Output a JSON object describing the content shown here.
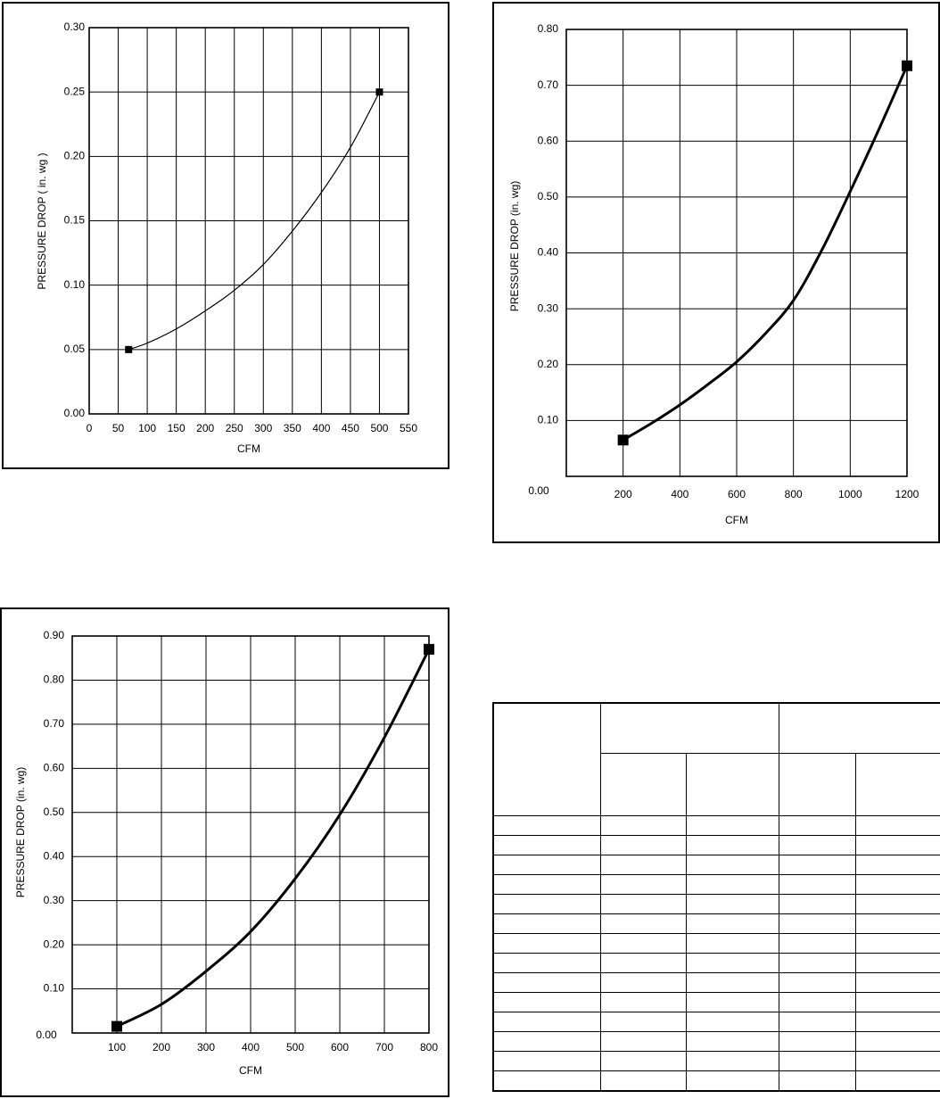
{
  "chart_data": [
    {
      "type": "line",
      "xlabel": "CFM",
      "ylabel": "PRESSURE DROP ( in. wg )",
      "xlim": [
        0,
        550
      ],
      "ylim": [
        0,
        0.3
      ],
      "xticks": [
        0,
        50,
        100,
        150,
        200,
        250,
        300,
        350,
        400,
        450,
        500,
        550
      ],
      "xtick_labels": [
        "0",
        "50",
        "100",
        "150",
        "200",
        "250",
        "300",
        "350",
        "400",
        "450",
        "500",
        "550"
      ],
      "yticks": [
        0,
        0.05,
        0.1,
        0.15,
        0.2,
        0.25,
        0.3
      ],
      "ytick_labels": [
        "0.00",
        "0.05",
        "0.10",
        "0.15",
        "0.20",
        "0.25",
        "0.30"
      ],
      "grid": true,
      "series": [
        {
          "x": [
            68,
            100,
            150,
            200,
            250,
            300,
            350,
            400,
            450,
            500
          ],
          "values": [
            0.05,
            0.055,
            0.066,
            0.08,
            0.096,
            0.116,
            0.142,
            0.172,
            0.207,
            0.25
          ]
        }
      ],
      "markers": {
        "x": [
          68,
          500
        ],
        "values": [
          0.05,
          0.25
        ]
      }
    },
    {
      "type": "line",
      "xlabel": "CFM",
      "ylabel": "PRESSURE DROP (in. wg)",
      "xlim": [
        0,
        1200
      ],
      "ylim": [
        0,
        0.8
      ],
      "xticks": [
        200,
        400,
        600,
        800,
        1000,
        1200
      ],
      "xtick_labels": [
        "200",
        "400",
        "600",
        "800",
        "1000",
        "1200"
      ],
      "yticks": [
        0.1,
        0.2,
        0.3,
        0.4,
        0.5,
        0.6,
        0.7,
        0.8
      ],
      "ytick_labels": [
        "0.10",
        "0.20",
        "0.30",
        "0.40",
        "0.50",
        "0.60",
        "0.70",
        "0.80"
      ],
      "y_zero_label": "0.00",
      "grid": true,
      "series": [
        {
          "x": [
            200,
            300,
            400,
            500,
            600,
            700,
            800,
            900,
            1000,
            1100,
            1200
          ],
          "values": [
            0.065,
            0.095,
            0.128,
            0.165,
            0.205,
            0.255,
            0.315,
            0.405,
            0.51,
            0.62,
            0.735
          ]
        }
      ],
      "markers": {
        "x": [
          200,
          1200
        ],
        "values": [
          0.065,
          0.735
        ]
      }
    },
    {
      "type": "line",
      "xlabel": "CFM",
      "ylabel": "PRESSURE DROP (in. wg)",
      "xlim": [
        0,
        800
      ],
      "ylim": [
        0,
        0.9
      ],
      "xticks": [
        100,
        200,
        300,
        400,
        500,
        600,
        700,
        800
      ],
      "xtick_labels": [
        "100",
        "200",
        "300",
        "400",
        "500",
        "600",
        "700",
        "800"
      ],
      "yticks": [
        0.1,
        0.2,
        0.3,
        0.4,
        0.5,
        0.6,
        0.7,
        0.8,
        0.9
      ],
      "ytick_labels": [
        "0.10",
        "0.20",
        "0.30",
        "0.40",
        "0.50",
        "0.60",
        "0.70",
        "0.80",
        "0.90"
      ],
      "y_zero_label": "0.00",
      "grid": true,
      "series": [
        {
          "x": [
            100,
            200,
            300,
            400,
            500,
            600,
            700,
            800
          ],
          "values": [
            0.015,
            0.065,
            0.14,
            0.23,
            0.35,
            0.495,
            0.67,
            0.87
          ]
        }
      ],
      "markers": {
        "x": [
          100,
          800
        ],
        "values": [
          0.015,
          0.87
        ]
      }
    }
  ],
  "table": {
    "column_count": 5,
    "body_row_count": 14
  }
}
